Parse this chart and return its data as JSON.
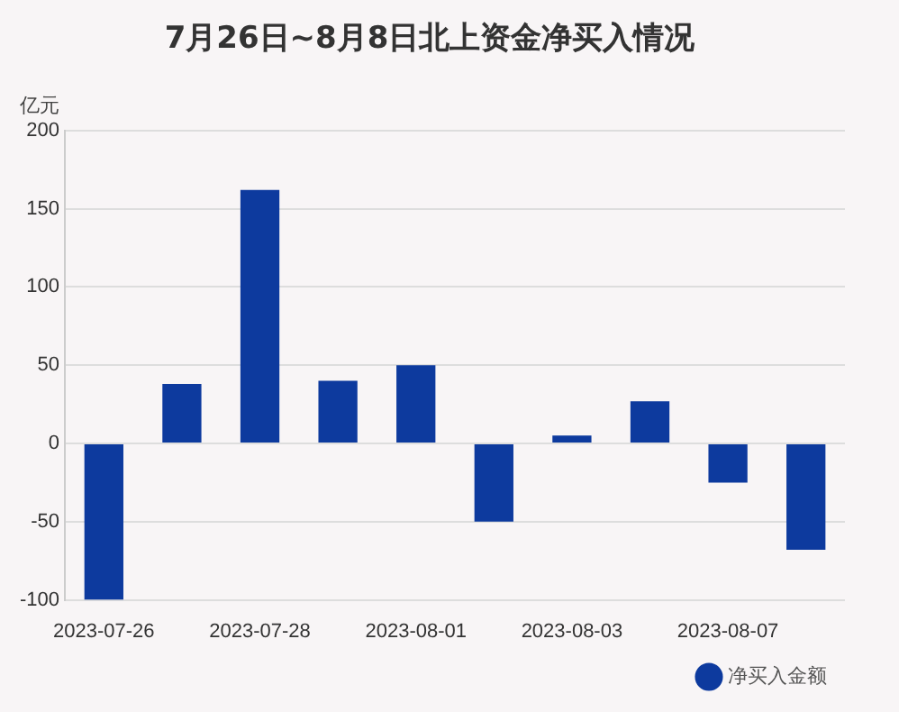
{
  "chart_data": {
    "type": "bar",
    "title": "7月26日~8月8日北上资金净买入情况",
    "ylabel": "亿元",
    "categories": [
      "2023-07-26",
      null,
      "2023-07-28",
      null,
      "2023-08-01",
      null,
      "2023-08-03",
      null,
      "2023-08-07",
      null
    ],
    "series": [
      {
        "name": "净买入金额",
        "color": "#0d3a9e",
        "values": [
          -100,
          38,
          162,
          40,
          50,
          -50,
          5,
          27,
          -25,
          -68
        ]
      }
    ],
    "ylim": [
      -100,
      200
    ],
    "yticks": [
      -100,
      -50,
      0,
      50,
      100,
      150,
      200
    ],
    "grid": "y",
    "legend": "bottom right"
  }
}
